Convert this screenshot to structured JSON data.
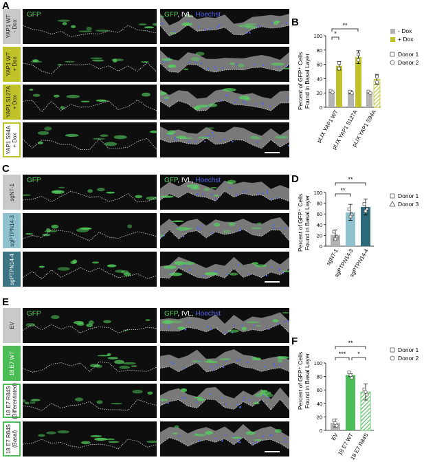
{
  "letters": {
    "A": "A",
    "B": "B",
    "C": "C",
    "D": "D",
    "E": "E",
    "F": "F"
  },
  "channels": {
    "gfp": "GFP",
    "merge_gfp": "GFP",
    "merge_ivl": "IVL",
    "merge_hoechst": "Hoechst",
    "sep": ", "
  },
  "colors": {
    "olive": "#c0c22a",
    "gray": "#b3b3b3",
    "sky": "#8fc1cf",
    "teal": "#2c6a7a",
    "green": "#4cbc57",
    "rowgray": "#c9c9c9",
    "white": "#ffffff",
    "rowteal": "#3e7584",
    "gfp": "#55d25e",
    "hoechst": "#5566ee"
  },
  "rows": {
    "A": [
      {
        "label": "YAP1 WT\n- Dox",
        "style": "gray"
      },
      {
        "label": "YAP1 WT\n+ Dox",
        "style": "olive"
      },
      {
        "label": "YAP1 S127A\n+ Dox",
        "style": "olive"
      },
      {
        "label": "YAP1 S94A\n+ Dox",
        "style": "white-olive"
      }
    ],
    "C": [
      {
        "label": "sgNT-1",
        "style": "gray"
      },
      {
        "label": "sgPTPN14-3",
        "style": "sky"
      },
      {
        "label": "sgPTPN14-4",
        "style": "teal"
      }
    ],
    "E": [
      {
        "label": "EV",
        "style": "gray"
      },
      {
        "label": "18 E7 WT",
        "style": "green"
      },
      {
        "label": "18 E7 R84S\n(Differentiated)",
        "style": "white-green"
      },
      {
        "label": "18 E7 R84S\n(Basal)",
        "style": "white-green"
      }
    ]
  },
  "chart_data": [
    {
      "panel": "B",
      "type": "bar",
      "ylabel_line1": "Percent of GFP⁺ Cells",
      "ylabel_line2": "Found in Basal Layer",
      "ylim": [
        0,
        100
      ],
      "yticks": [
        "0",
        "20",
        "40",
        "60",
        "80",
        "100"
      ],
      "categories": [
        "pLIX YAP1 WT",
        "pLIX YAP1 S127A",
        "pLIX YAP1 S94A"
      ],
      "series": [
        {
          "name": "- Dox",
          "values": [
            22,
            21,
            21
          ]
        },
        {
          "name": "+ Dox",
          "values": [
            58,
            70,
            39
          ]
        }
      ],
      "errors": [
        [
          1,
          2,
          1
        ],
        [
          6,
          9,
          7
        ]
      ],
      "legend": [
        "- Dox",
        "+ Dox"
      ],
      "donors": [
        "Donor 1",
        "Donor 2"
      ],
      "significance": [
        "*",
        "**"
      ]
    },
    {
      "panel": "D",
      "type": "bar",
      "ylabel_line1": "Percent of GFP⁺ Cells",
      "ylabel_line2": "Found in Basal Layer",
      "ylim": [
        0,
        100
      ],
      "yticks": [
        "0",
        "20",
        "40",
        "60",
        "80",
        "100"
      ],
      "categories": [
        "sgNT-1",
        "sgPTPN14-3",
        "sgPTPN14-4"
      ],
      "values": [
        21,
        63,
        73
      ],
      "errors": [
        9,
        15,
        15
      ],
      "donors": [
        "Donor 1",
        "Donor 3"
      ],
      "significance": [
        "**",
        "**"
      ]
    },
    {
      "panel": "F",
      "type": "bar",
      "ylabel_line1": "Percent of GFP⁺ Cells",
      "ylabel_line2": "Found in Basal Layer",
      "ylim": [
        0,
        100
      ],
      "yticks": [
        "0",
        "20",
        "40",
        "60",
        "80",
        "100"
      ],
      "categories": [
        "EV",
        "18 E7 WT",
        "18 E7 R84S"
      ],
      "values": [
        11,
        82,
        57
      ],
      "errors": [
        6,
        2,
        12
      ],
      "donors": [
        "Donor 1",
        "Donor 2"
      ],
      "significance": [
        "**",
        "***",
        "*"
      ]
    }
  ]
}
